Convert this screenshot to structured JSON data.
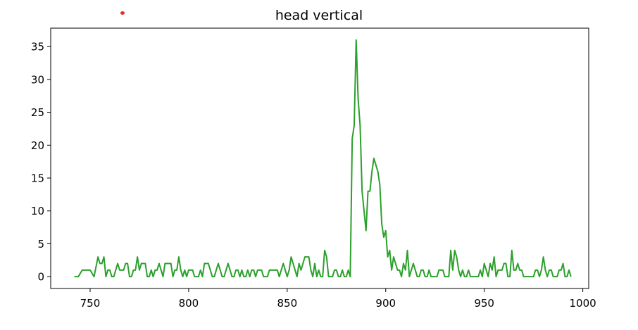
{
  "chart_data": {
    "type": "line",
    "title": "head vertical",
    "xlabel": "",
    "ylabel": "",
    "xlim": [
      730,
      1003
    ],
    "ylim": [
      -1.8,
      37.8
    ],
    "xticks": [
      750,
      800,
      850,
      900,
      950,
      1000
    ],
    "yticks": [
      0,
      5,
      10,
      15,
      20,
      25,
      30,
      35
    ],
    "grid": false,
    "series": [
      {
        "color": "#2ca02c",
        "points": [
          [
            742,
            0
          ],
          [
            744,
            0
          ],
          [
            746,
            1
          ],
          [
            748,
            1
          ],
          [
            750,
            1
          ],
          [
            752,
            0
          ],
          [
            754,
            3
          ],
          [
            755,
            2
          ],
          [
            756,
            2
          ],
          [
            757,
            3
          ],
          [
            758,
            0
          ],
          [
            759,
            1
          ],
          [
            760,
            1
          ],
          [
            761,
            0
          ],
          [
            762,
            0
          ],
          [
            764,
            2
          ],
          [
            765,
            1
          ],
          [
            766,
            1
          ],
          [
            767,
            1
          ],
          [
            768,
            2
          ],
          [
            769,
            2
          ],
          [
            770,
            0
          ],
          [
            771,
            0
          ],
          [
            772,
            1
          ],
          [
            773,
            1
          ],
          [
            774,
            3
          ],
          [
            775,
            1
          ],
          [
            776,
            2
          ],
          [
            777,
            2
          ],
          [
            778,
            2
          ],
          [
            779,
            0
          ],
          [
            780,
            0
          ],
          [
            781,
            1
          ],
          [
            782,
            0
          ],
          [
            783,
            1
          ],
          [
            784,
            1
          ],
          [
            785,
            2
          ],
          [
            786,
            1
          ],
          [
            787,
            0
          ],
          [
            788,
            2
          ],
          [
            789,
            2
          ],
          [
            790,
            2
          ],
          [
            791,
            2
          ],
          [
            792,
            0
          ],
          [
            793,
            1
          ],
          [
            794,
            1
          ],
          [
            795,
            3
          ],
          [
            796,
            1
          ],
          [
            797,
            0
          ],
          [
            798,
            1
          ],
          [
            799,
            0
          ],
          [
            800,
            1
          ],
          [
            801,
            1
          ],
          [
            802,
            1
          ],
          [
            803,
            0
          ],
          [
            804,
            0
          ],
          [
            805,
            0
          ],
          [
            806,
            1
          ],
          [
            807,
            0
          ],
          [
            808,
            2
          ],
          [
            809,
            2
          ],
          [
            810,
            2
          ],
          [
            811,
            1
          ],
          [
            812,
            0
          ],
          [
            813,
            0
          ],
          [
            814,
            1
          ],
          [
            815,
            2
          ],
          [
            816,
            1
          ],
          [
            817,
            0
          ],
          [
            818,
            0
          ],
          [
            819,
            1
          ],
          [
            820,
            2
          ],
          [
            821,
            1
          ],
          [
            822,
            0
          ],
          [
            823,
            0
          ],
          [
            824,
            1
          ],
          [
            825,
            1
          ],
          [
            826,
            0
          ],
          [
            827,
            1
          ],
          [
            828,
            0
          ],
          [
            829,
            0
          ],
          [
            830,
            1
          ],
          [
            831,
            0
          ],
          [
            832,
            1
          ],
          [
            833,
            1
          ],
          [
            834,
            0
          ],
          [
            835,
            1
          ],
          [
            836,
            1
          ],
          [
            837,
            1
          ],
          [
            838,
            0
          ],
          [
            839,
            0
          ],
          [
            840,
            0
          ],
          [
            841,
            1
          ],
          [
            842,
            1
          ],
          [
            843,
            1
          ],
          [
            844,
            1
          ],
          [
            845,
            1
          ],
          [
            846,
            0
          ],
          [
            847,
            1
          ],
          [
            848,
            2
          ],
          [
            849,
            1
          ],
          [
            850,
            0
          ],
          [
            851,
            1
          ],
          [
            852,
            3
          ],
          [
            853,
            2
          ],
          [
            854,
            1
          ],
          [
            855,
            0
          ],
          [
            856,
            2
          ],
          [
            857,
            1
          ],
          [
            858,
            2
          ],
          [
            859,
            3
          ],
          [
            860,
            3
          ],
          [
            861,
            3
          ],
          [
            862,
            1
          ],
          [
            863,
            0
          ],
          [
            864,
            2
          ],
          [
            865,
            0
          ],
          [
            866,
            1
          ],
          [
            867,
            0
          ],
          [
            868,
            0
          ],
          [
            869,
            4
          ],
          [
            870,
            3
          ],
          [
            871,
            0
          ],
          [
            872,
            0
          ],
          [
            873,
            0
          ],
          [
            874,
            1
          ],
          [
            875,
            1
          ],
          [
            876,
            0
          ],
          [
            877,
            0
          ],
          [
            878,
            1
          ],
          [
            879,
            0
          ],
          [
            880,
            0
          ],
          [
            881,
            1
          ],
          [
            882,
            0
          ],
          [
            883,
            21
          ],
          [
            884,
            23
          ],
          [
            885,
            36
          ],
          [
            886,
            27
          ],
          [
            887,
            23
          ],
          [
            888,
            13
          ],
          [
            889,
            10
          ],
          [
            890,
            7
          ],
          [
            891,
            13
          ],
          [
            892,
            13
          ],
          [
            893,
            16
          ],
          [
            894,
            18
          ],
          [
            895,
            17
          ],
          [
            896,
            16
          ],
          [
            897,
            14
          ],
          [
            898,
            8
          ],
          [
            899,
            6
          ],
          [
            900,
            7
          ],
          [
            901,
            3
          ],
          [
            902,
            4
          ],
          [
            903,
            1
          ],
          [
            904,
            3
          ],
          [
            905,
            2
          ],
          [
            906,
            1
          ],
          [
            907,
            1
          ],
          [
            908,
            0
          ],
          [
            909,
            2
          ],
          [
            910,
            1
          ],
          [
            911,
            4
          ],
          [
            912,
            0
          ],
          [
            913,
            1
          ],
          [
            914,
            2
          ],
          [
            915,
            1
          ],
          [
            916,
            0
          ],
          [
            917,
            0
          ],
          [
            918,
            1
          ],
          [
            919,
            1
          ],
          [
            920,
            0
          ],
          [
            921,
            0
          ],
          [
            922,
            1
          ],
          [
            923,
            0
          ],
          [
            924,
            0
          ],
          [
            925,
            0
          ],
          [
            926,
            0
          ],
          [
            927,
            1
          ],
          [
            928,
            1
          ],
          [
            929,
            1
          ],
          [
            930,
            0
          ],
          [
            931,
            0
          ],
          [
            932,
            0
          ],
          [
            933,
            4
          ],
          [
            934,
            1
          ],
          [
            935,
            4
          ],
          [
            936,
            3
          ],
          [
            937,
            1
          ],
          [
            938,
            0
          ],
          [
            939,
            1
          ],
          [
            940,
            0
          ],
          [
            941,
            0
          ],
          [
            942,
            1
          ],
          [
            943,
            0
          ],
          [
            944,
            0
          ],
          [
            945,
            0
          ],
          [
            946,
            0
          ],
          [
            947,
            0
          ],
          [
            948,
            1
          ],
          [
            949,
            0
          ],
          [
            950,
            2
          ],
          [
            951,
            1
          ],
          [
            952,
            0
          ],
          [
            953,
            2
          ],
          [
            954,
            1
          ],
          [
            955,
            3
          ],
          [
            956,
            0
          ],
          [
            957,
            1
          ],
          [
            958,
            1
          ],
          [
            959,
            1
          ],
          [
            960,
            2
          ],
          [
            961,
            2
          ],
          [
            962,
            0
          ],
          [
            963,
            0
          ],
          [
            964,
            4
          ],
          [
            965,
            1
          ],
          [
            966,
            1
          ],
          [
            967,
            2
          ],
          [
            968,
            1
          ],
          [
            969,
            1
          ],
          [
            970,
            0
          ],
          [
            971,
            0
          ],
          [
            972,
            0
          ],
          [
            973,
            0
          ],
          [
            974,
            0
          ],
          [
            975,
            0
          ],
          [
            976,
            1
          ],
          [
            977,
            1
          ],
          [
            978,
            0
          ],
          [
            979,
            1
          ],
          [
            980,
            3
          ],
          [
            981,
            1
          ],
          [
            982,
            0
          ],
          [
            983,
            1
          ],
          [
            984,
            1
          ],
          [
            985,
            0
          ],
          [
            986,
            0
          ],
          [
            987,
            0
          ],
          [
            988,
            1
          ],
          [
            989,
            1
          ],
          [
            990,
            2
          ],
          [
            991,
            0
          ],
          [
            992,
            0
          ],
          [
            993,
            1
          ],
          [
            994,
            0
          ]
        ]
      }
    ]
  },
  "marker_color": "#e03030"
}
